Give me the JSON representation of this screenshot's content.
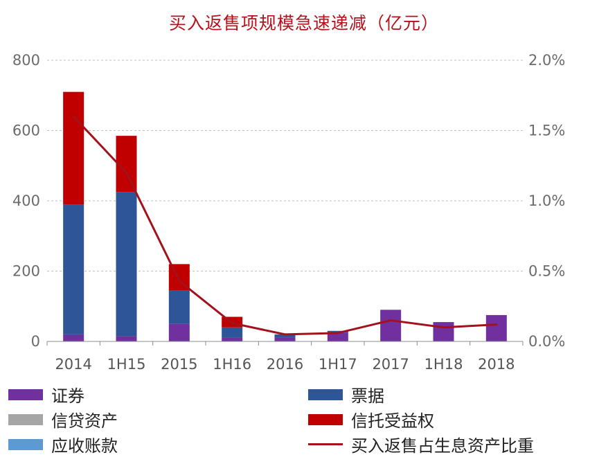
{
  "chart_data": {
    "type": "bar",
    "stacked": true,
    "title": "买入返售项规模急速递减（亿元）",
    "categories": [
      "2014",
      "1H15",
      "2015",
      "1H16",
      "2016",
      "1H17",
      "2017",
      "1H18",
      "2018"
    ],
    "series": [
      {
        "name": "证券",
        "color": "#7030a0",
        "values": [
          20,
          15,
          50,
          10,
          10,
          25,
          90,
          55,
          75
        ]
      },
      {
        "name": "信贷资产",
        "color": "#a5a5a5",
        "values": [
          0,
          0,
          0,
          0,
          0,
          0,
          0,
          0,
          0
        ]
      },
      {
        "name": "应收账款",
        "color": "#5b9bd5",
        "values": [
          0,
          0,
          0,
          0,
          0,
          0,
          0,
          0,
          0
        ]
      },
      {
        "name": "票据",
        "color": "#2e5597",
        "values": [
          370,
          410,
          95,
          30,
          10,
          5,
          0,
          0,
          0
        ]
      },
      {
        "name": "信托受益权",
        "color": "#c00000",
        "values": [
          320,
          160,
          75,
          30,
          0,
          0,
          0,
          0,
          0
        ]
      },
      {
        "name": "买入返售占生息资产比重",
        "type": "line",
        "axis": "right",
        "color": "#a3121b",
        "values": [
          1.6,
          1.2,
          0.43,
          0.13,
          0.05,
          0.06,
          0.15,
          0.1,
          0.12
        ]
      }
    ],
    "y_left": {
      "range": [
        0,
        800
      ],
      "ticks": [
        "0",
        "200",
        "400",
        "600",
        "800"
      ]
    },
    "y_right": {
      "range": [
        0,
        2.0
      ],
      "ticks": [
        "0.0%",
        "0.5%",
        "1.0%",
        "1.5%",
        "2.0%"
      ]
    },
    "grid": true,
    "legend_position": "bottom"
  }
}
